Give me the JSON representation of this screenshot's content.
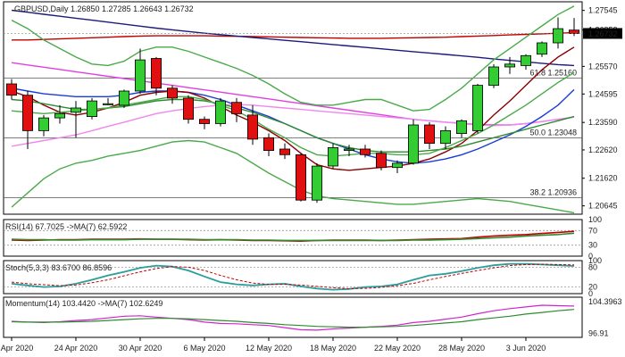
{
  "chart_data": [
    {
      "type": "candlestick",
      "title": "GBPUSD,Daily  1.26850 1.27285 1.26643 1.26732",
      "ylim": [
        1.2035,
        1.2785
      ],
      "y_ticks": [
        "1.27545",
        "1.26853",
        "1.25570",
        "1.24595",
        "1.23590",
        "1.22620",
        "1.21620",
        "1.20645"
      ],
      "x_ticks": [
        {
          "label": "20 Apr 2020",
          "i": 0
        },
        {
          "label": "24 Apr 2020",
          "i": 4
        },
        {
          "label": "30 Apr 2020",
          "i": 8
        },
        {
          "label": "6 May 2020",
          "i": 12
        },
        {
          "label": "12 May 2020",
          "i": 16
        },
        {
          "label": "18 May 2020",
          "i": 20
        },
        {
          "label": "22 May 2020",
          "i": 24
        },
        {
          "label": "28 May 2020",
          "i": 28
        },
        {
          "label": "3 Jun 2020",
          "i": 32
        }
      ],
      "current_price": "1.26732",
      "fibonacci": [
        {
          "label": "61.8 1.25160",
          "value": 1.2516
        },
        {
          "label": "50.0 1.23048",
          "value": 1.23048
        },
        {
          "label": "38.2 1.20936",
          "value": 1.20936
        }
      ],
      "candles": [
        {
          "o": 1.2495,
          "h": 1.2512,
          "l": 1.244,
          "c": 1.2455
        },
        {
          "o": 1.2455,
          "h": 1.247,
          "l": 1.2265,
          "c": 1.233
        },
        {
          "o": 1.233,
          "h": 1.2385,
          "l": 1.231,
          "c": 1.2375
        },
        {
          "o": 1.2375,
          "h": 1.242,
          "l": 1.2355,
          "c": 1.239
        },
        {
          "o": 1.2395,
          "h": 1.2435,
          "l": 1.2305,
          "c": 1.241
        },
        {
          "o": 1.238,
          "h": 1.2445,
          "l": 1.237,
          "c": 1.2435
        },
        {
          "o": 1.2425,
          "h": 1.2445,
          "l": 1.242,
          "c": 1.2425
        },
        {
          "o": 1.242,
          "h": 1.2475,
          "l": 1.241,
          "c": 1.247
        },
        {
          "o": 1.247,
          "h": 1.262,
          "l": 1.246,
          "c": 1.258
        },
        {
          "o": 1.2585,
          "h": 1.259,
          "l": 1.2455,
          "c": 1.248
        },
        {
          "o": 1.248,
          "h": 1.249,
          "l": 1.2425,
          "c": 1.2445
        },
        {
          "o": 1.2445,
          "h": 1.2455,
          "l": 1.2355,
          "c": 1.237
        },
        {
          "o": 1.237,
          "h": 1.238,
          "l": 1.2335,
          "c": 1.2355
        },
        {
          "o": 1.2355,
          "h": 1.2445,
          "l": 1.2345,
          "c": 1.2435
        },
        {
          "o": 1.243,
          "h": 1.2445,
          "l": 1.236,
          "c": 1.239
        },
        {
          "o": 1.2385,
          "h": 1.242,
          "l": 1.228,
          "c": 1.23
        },
        {
          "o": 1.2305,
          "h": 1.232,
          "l": 1.224,
          "c": 1.226
        },
        {
          "o": 1.2265,
          "h": 1.2285,
          "l": 1.223,
          "c": 1.2245
        },
        {
          "o": 1.2245,
          "h": 1.225,
          "l": 1.208,
          "c": 1.2085
        },
        {
          "o": 1.2085,
          "h": 1.2215,
          "l": 1.2075,
          "c": 1.2205
        },
        {
          "o": 1.2205,
          "h": 1.2285,
          "l": 1.2195,
          "c": 1.227
        },
        {
          "o": 1.226,
          "h": 1.228,
          "l": 1.224,
          "c": 1.2265
        },
        {
          "o": 1.2265,
          "h": 1.228,
          "l": 1.2235,
          "c": 1.2245
        },
        {
          "o": 1.225,
          "h": 1.226,
          "l": 1.219,
          "c": 1.22
        },
        {
          "o": 1.22,
          "h": 1.2225,
          "l": 1.218,
          "c": 1.2215
        },
        {
          "o": 1.2215,
          "h": 1.237,
          "l": 1.221,
          "c": 1.235
        },
        {
          "o": 1.235,
          "h": 1.236,
          "l": 1.2265,
          "c": 1.2285
        },
        {
          "o": 1.2285,
          "h": 1.2345,
          "l": 1.2265,
          "c": 1.233
        },
        {
          "o": 1.232,
          "h": 1.237,
          "l": 1.2305,
          "c": 1.2365
        },
        {
          "o": 1.233,
          "h": 1.2495,
          "l": 1.232,
          "c": 1.249
        },
        {
          "o": 1.249,
          "h": 1.2565,
          "l": 1.248,
          "c": 1.2555
        },
        {
          "o": 1.2555,
          "h": 1.259,
          "l": 1.253,
          "c": 1.2565
        },
        {
          "o": 1.256,
          "h": 1.26,
          "l": 1.2545,
          "c": 1.2595
        },
        {
          "o": 1.26,
          "h": 1.2645,
          "l": 1.259,
          "c": 1.264
        },
        {
          "o": 1.264,
          "h": 1.273,
          "l": 1.262,
          "c": 1.269
        },
        {
          "o": 1.2685,
          "h": 1.2728,
          "l": 1.2664,
          "c": 1.2673
        }
      ],
      "lines": [
        {
          "color": "#c00000",
          "values": [
            1.265,
            1.265,
            1.2652,
            1.2654,
            1.2656,
            1.2658,
            1.266,
            1.2662,
            1.2664,
            1.2665,
            1.2665,
            1.2665,
            1.2665,
            1.2664,
            1.2663,
            1.2662,
            1.2661,
            1.266,
            1.2659,
            1.2658,
            1.2657,
            1.2656,
            1.2656,
            1.2656,
            1.2657,
            1.2658,
            1.2659,
            1.266,
            1.2662,
            1.2664,
            1.2666,
            1.2668,
            1.267,
            1.2672,
            1.2674,
            1.2676
          ]
        },
        {
          "color": "#1b1b7a",
          "values": [
            1.2755,
            1.2748,
            1.2741,
            1.2734,
            1.2727,
            1.272,
            1.2713,
            1.2706,
            1.2699,
            1.2692,
            1.2686,
            1.268,
            1.2674,
            1.2669,
            1.2664,
            1.2659,
            1.2654,
            1.2649,
            1.2644,
            1.2639,
            1.2634,
            1.2629,
            1.2624,
            1.2619,
            1.2614,
            1.2609,
            1.2604,
            1.2599,
            1.2594,
            1.2589,
            1.2583,
            1.2578,
            1.2573,
            1.2568,
            1.2563,
            1.256
          ]
        },
        {
          "color": "#e040e0",
          "values": [
            1.257,
            1.2562,
            1.2554,
            1.2546,
            1.2538,
            1.253,
            1.2522,
            1.2514,
            1.2506,
            1.2498,
            1.249,
            1.2482,
            1.2474,
            1.2466,
            1.2458,
            1.245,
            1.2442,
            1.2434,
            1.2426,
            1.2418,
            1.241,
            1.2402,
            1.2394,
            1.2386,
            1.2378,
            1.237,
            1.2365,
            1.236,
            1.2356,
            1.2352,
            1.235,
            1.235,
            1.2355,
            1.2362,
            1.237,
            1.2378
          ]
        },
        {
          "color": "#ee88ee",
          "values": [
            1.2275,
            1.2285,
            1.2295,
            1.2305,
            1.2315,
            1.233,
            1.2345,
            1.236,
            1.2375,
            1.239,
            1.24,
            1.2408,
            1.2415,
            1.242,
            1.2422,
            1.242,
            1.2415,
            1.241,
            1.2405,
            1.24,
            1.2395,
            1.239,
            1.2385,
            1.238,
            1.2375,
            1.237,
            1.2365,
            1.236,
            1.2355,
            1.235,
            1.2348,
            1.235,
            1.2355,
            1.2362,
            1.237,
            1.2378
          ]
        },
        {
          "color": "#1a3cd6",
          "values": [
            1.248,
            1.247,
            1.246,
            1.2455,
            1.245,
            1.245,
            1.245,
            1.2455,
            1.2465,
            1.247,
            1.247,
            1.2465,
            1.2455,
            1.244,
            1.242,
            1.24,
            1.238,
            1.2355,
            1.233,
            1.2305,
            1.2285,
            1.2265,
            1.2245,
            1.223,
            1.222,
            1.2215,
            1.222,
            1.223,
            1.2245,
            1.2265,
            1.229,
            1.2315,
            1.2345,
            1.238,
            1.242,
            1.2475
          ]
        },
        {
          "color": "#8b0000",
          "values": [
            1.247,
            1.245,
            1.242,
            1.2395,
            1.2385,
            1.2395,
            1.241,
            1.243,
            1.2455,
            1.2465,
            1.247,
            1.2465,
            1.2445,
            1.2415,
            1.2385,
            1.236,
            1.233,
            1.2295,
            1.225,
            1.221,
            1.2195,
            1.219,
            1.2195,
            1.22,
            1.2205,
            1.2215,
            1.223,
            1.2255,
            1.2285,
            1.233,
            1.2385,
            1.2435,
            1.249,
            1.2545,
            1.259,
            1.2625
          ]
        },
        {
          "color": "#2e8b2e",
          "values": [
            1.244,
            1.2435,
            1.2425,
            1.2415,
            1.2405,
            1.2405,
            1.241,
            1.2415,
            1.2425,
            1.2435,
            1.244,
            1.244,
            1.2435,
            1.2425,
            1.241,
            1.2395,
            1.2375,
            1.2355,
            1.233,
            1.2305,
            1.2285,
            1.227,
            1.226,
            1.2255,
            1.2255,
            1.2255,
            1.226,
            1.2265,
            1.2275,
            1.229,
            1.2305,
            1.232,
            1.2335,
            1.235,
            1.2365,
            1.238
          ]
        },
        {
          "color": "#4aaa4a",
          "values": [
            1.272,
            1.269,
            1.265,
            1.262,
            1.259,
            1.2565,
            1.256,
            1.2575,
            1.261,
            1.2625,
            1.2625,
            1.261,
            1.259,
            1.257,
            1.255,
            1.2525,
            1.2495,
            1.246,
            1.243,
            1.242,
            1.242,
            1.243,
            1.244,
            1.244,
            1.242,
            1.24,
            1.2405,
            1.244,
            1.248,
            1.253,
            1.258,
            1.262,
            1.266,
            1.27,
            1.274,
            1.277
          ]
        },
        {
          "color": "#4aaa4a",
          "values": [
            1.206,
            1.211,
            1.216,
            1.2195,
            1.2215,
            1.2225,
            1.224,
            1.225,
            1.226,
            1.2275,
            1.229,
            1.2295,
            1.229,
            1.227,
            1.225,
            1.2215,
            1.218,
            1.215,
            1.212,
            1.21,
            1.209,
            1.2085,
            1.208,
            1.2075,
            1.207,
            1.207,
            1.2075,
            1.208,
            1.2085,
            1.209,
            1.2085,
            1.208,
            1.207,
            1.206,
            1.205,
            1.204
          ]
        },
        {
          "color": "#4aaa4a",
          "values": [
            1.24,
            1.2395,
            1.239,
            1.2395,
            1.24,
            1.2405,
            1.241,
            1.242,
            1.243,
            1.244,
            1.245,
            1.245,
            1.244,
            1.242,
            1.24,
            1.237,
            1.2335,
            1.2305,
            1.227,
            1.2245,
            1.224,
            1.2245,
            1.225,
            1.225,
            1.2245,
            1.2245,
            1.225,
            1.227,
            1.2295,
            1.232,
            1.235,
            1.2385,
            1.242,
            1.246,
            1.25,
            1.2535
          ]
        }
      ]
    },
    {
      "type": "line",
      "title": "RSI(14) 67.7025  ->MA(7) 62.5922",
      "ylim": [
        0,
        100
      ],
      "y_ticks": [
        100,
        70,
        30,
        0
      ],
      "levels": [
        70,
        30
      ],
      "series": [
        {
          "color": "#c00000",
          "values": [
            44,
            43,
            44,
            45,
            45,
            46,
            46,
            46,
            47,
            46,
            46,
            45,
            44,
            45,
            44,
            43,
            43,
            42,
            41,
            43,
            44,
            44,
            44,
            43,
            44,
            45,
            46,
            47,
            48,
            52,
            55,
            57,
            59,
            62,
            65,
            67.7
          ]
        },
        {
          "color": "#2e8b2e",
          "values": [
            46,
            45,
            45,
            44,
            44,
            45,
            45,
            45,
            46,
            46,
            46,
            46,
            45,
            45,
            45,
            44,
            44,
            43,
            43,
            43,
            43,
            43,
            43,
            43,
            43,
            44,
            44,
            45,
            46,
            48,
            50,
            52,
            55,
            57,
            59,
            62.6
          ]
        }
      ]
    },
    {
      "type": "line",
      "title": "Stoch(5,3,3) 83.6700 86.8596",
      "ylim": [
        0,
        100
      ],
      "y_ticks": [
        100,
        80,
        20,
        0
      ],
      "levels": [
        80,
        20
      ],
      "series": [
        {
          "color": "#2a9d9d",
          "values": [
            30,
            25,
            20,
            22,
            30,
            42,
            55,
            66,
            78,
            85,
            82,
            70,
            52,
            35,
            28,
            25,
            28,
            30,
            22,
            15,
            12,
            14,
            20,
            22,
            28,
            42,
            55,
            60,
            68,
            78,
            86,
            90,
            90,
            88,
            86,
            83.7
          ]
        },
        {
          "color": "#c00000",
          "values": [
            35,
            30,
            27,
            24,
            26,
            33,
            42,
            54,
            66,
            76,
            82,
            80,
            70,
            55,
            42,
            32,
            28,
            28,
            26,
            22,
            18,
            15,
            16,
            19,
            24,
            31,
            42,
            52,
            61,
            70,
            78,
            85,
            88,
            89,
            88,
            86.9
          ]
        }
      ]
    },
    {
      "type": "line",
      "title": "Momentum(14) 103.4420  ->MA(7) 102.6249",
      "ylim": [
        96.0,
        105.5
      ],
      "y_ticks": [
        104.3963,
        96.91
      ],
      "series": [
        {
          "color": "#d024d0",
          "values": [
            99.8,
            99.6,
            99.5,
            99.7,
            100.0,
            100.2,
            100.6,
            101.0,
            101.1,
            100.8,
            100.5,
            100.2,
            99.6,
            99.3,
            99.2,
            99.0,
            98.8,
            98.3,
            97.8,
            97.7,
            98.0,
            98.2,
            98.4,
            98.6,
            98.9,
            99.5,
            99.8,
            100.3,
            100.8,
            101.6,
            102.3,
            102.8,
            103.2,
            103.6,
            103.5,
            103.4
          ]
        },
        {
          "color": "#2e8b2e",
          "values": [
            99.7,
            99.6,
            99.6,
            99.6,
            99.7,
            99.8,
            100.0,
            100.2,
            100.4,
            100.5,
            100.5,
            100.4,
            100.2,
            100.0,
            99.8,
            99.5,
            99.3,
            99.0,
            98.8,
            98.6,
            98.5,
            98.4,
            98.4,
            98.5,
            98.6,
            98.8,
            99.1,
            99.4,
            99.7,
            100.2,
            100.6,
            101.0,
            101.5,
            101.9,
            102.3,
            102.6
          ]
        }
      ]
    }
  ]
}
